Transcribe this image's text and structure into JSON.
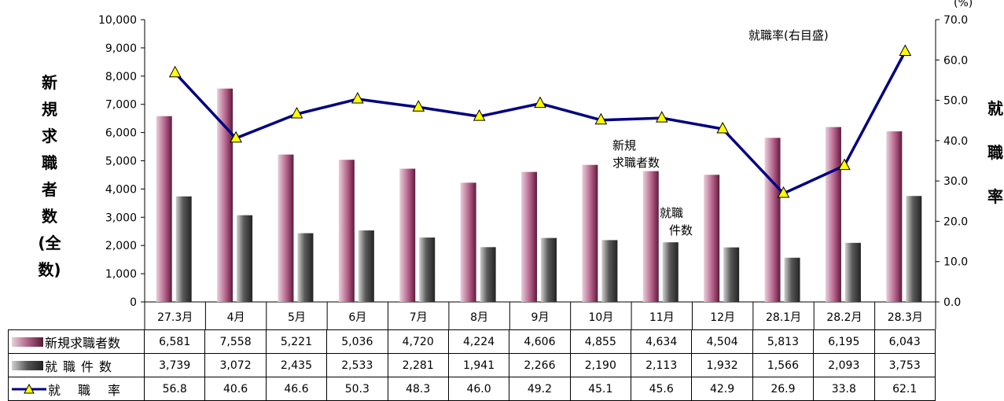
{
  "chart_data": {
    "type": "bar",
    "categories": [
      "27.3月",
      "4月",
      "5月",
      "6月",
      "7月",
      "8月",
      "9月",
      "10月",
      "11月",
      "12月",
      "28.1月",
      "28.2月",
      "28.3月"
    ],
    "series": [
      {
        "name": "新規求職者数",
        "type": "bar",
        "axis": "left",
        "color": "#a9507a",
        "values": [
          6581,
          7558,
          5221,
          5036,
          4720,
          4224,
          4606,
          4855,
          4634,
          4504,
          5813,
          6195,
          6043
        ],
        "labels": [
          "6,581",
          "7,558",
          "5,221",
          "5,036",
          "4,720",
          "4,224",
          "4,606",
          "4,855",
          "4,634",
          "4,504",
          "5,813",
          "6,195",
          "6,043"
        ]
      },
      {
        "name": "就職件数",
        "type": "bar",
        "axis": "left",
        "color": "#444444",
        "values": [
          3739,
          3072,
          2435,
          2533,
          2281,
          1941,
          2266,
          2190,
          2113,
          1932,
          1566,
          2093,
          3753
        ],
        "labels": [
          "3,739",
          "3,072",
          "2,435",
          "2,533",
          "2,281",
          "1,941",
          "2,266",
          "2,190",
          "2,113",
          "1,932",
          "1,566",
          "2,093",
          "3,753"
        ]
      },
      {
        "name": "就職率",
        "type": "line",
        "axis": "right",
        "color": "#000080",
        "marker_color": "#ffff00",
        "values": [
          56.8,
          40.6,
          46.6,
          50.3,
          48.3,
          46.0,
          49.2,
          45.1,
          45.6,
          42.9,
          26.9,
          33.8,
          62.1
        ],
        "labels": [
          "56.8",
          "40.6",
          "46.6",
          "50.3",
          "48.3",
          "46.0",
          "49.2",
          "45.1",
          "45.6",
          "42.9",
          "26.9",
          "33.8",
          "62.1"
        ]
      }
    ],
    "ylim_left": [
      0,
      10000
    ],
    "yticks_left": [
      "0",
      "1,000",
      "2,000",
      "3,000",
      "4,000",
      "5,000",
      "6,000",
      "7,000",
      "8,000",
      "9,000",
      "10,000"
    ],
    "ylim_right": [
      0,
      70
    ],
    "yticks_right": [
      "0.0",
      "10.0",
      "20.0",
      "30.0",
      "40.0",
      "50.0",
      "60.0",
      "70.0"
    ],
    "ylabel_left": "新規求職者数(全数)",
    "ylabel_right": "就職率",
    "right_unit": "(%)",
    "annotations": {
      "rate_axis_note": "就職率(右目盛)",
      "new_seekers_line1": "新規",
      "new_seekers_line2": "求職者数",
      "placements_line1": "就職",
      "placements_line2": "件数"
    },
    "grid": false,
    "legend": "data-table"
  },
  "table": {
    "row_labels": [
      "新規求職者数",
      "就職件数",
      "就職率"
    ]
  }
}
